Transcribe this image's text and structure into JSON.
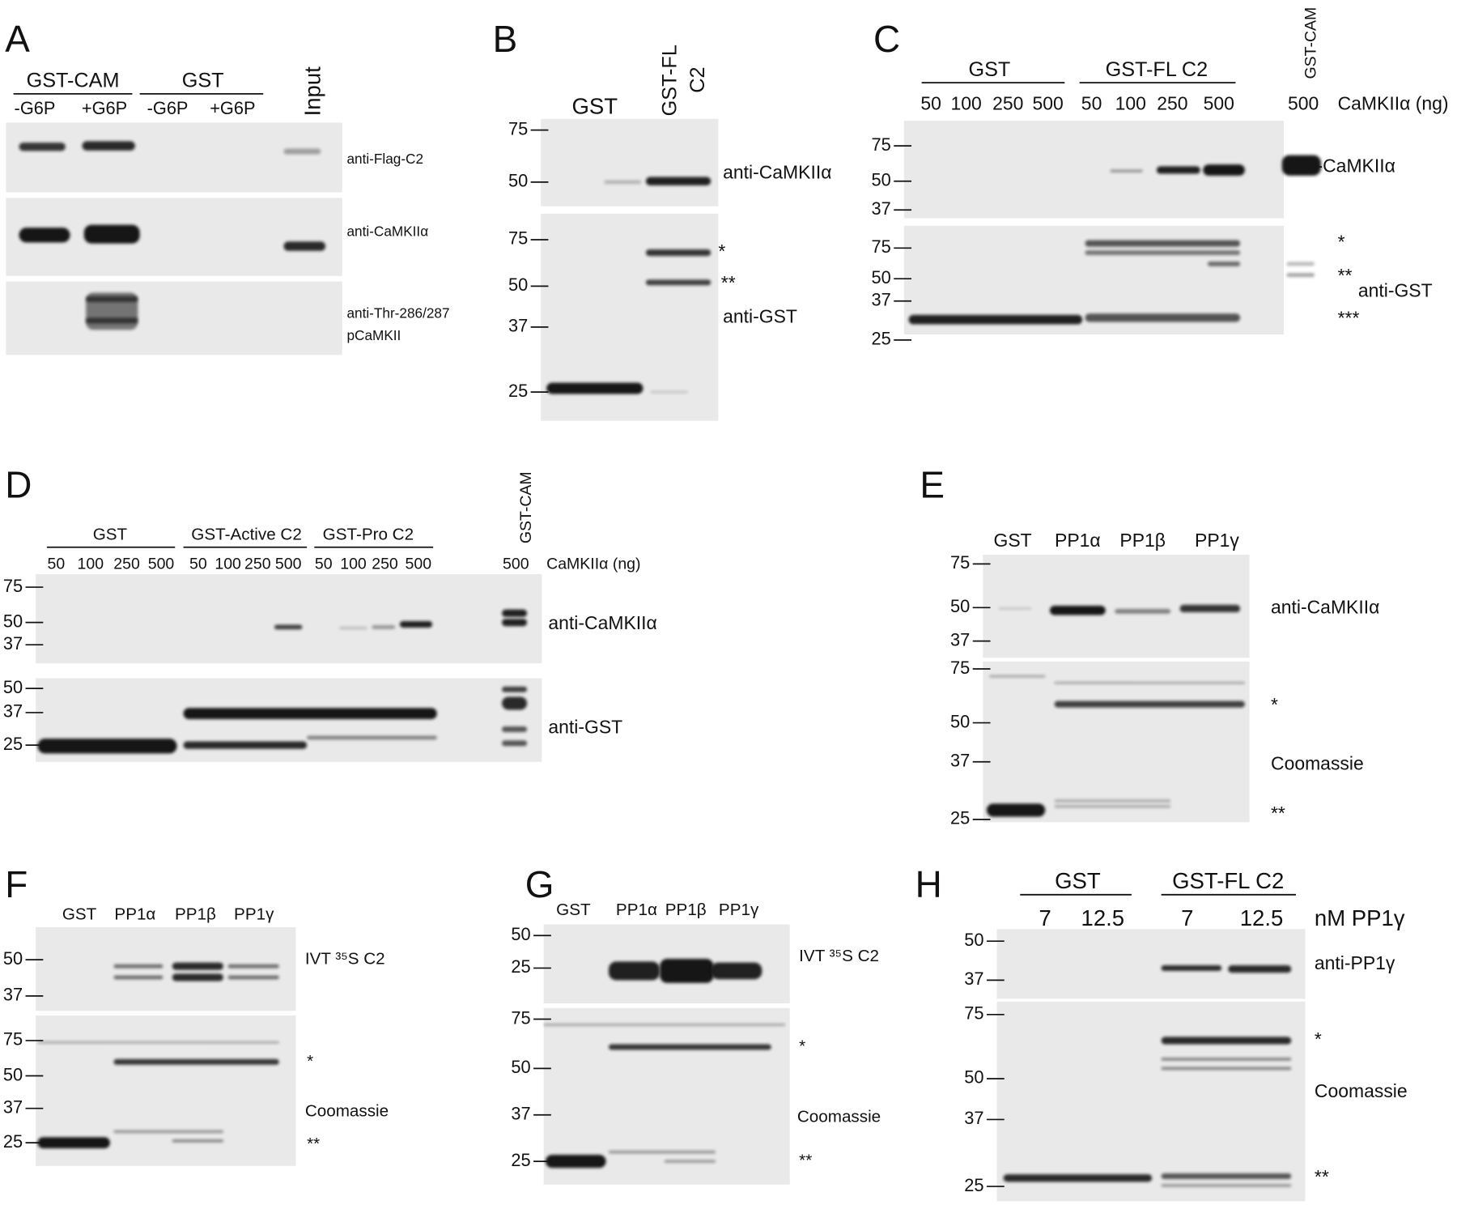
{
  "panels": [
    {
      "label": "A",
      "headers": [
        "GST-CAM",
        "GST"
      ],
      "vertical_labels": [
        "Input"
      ],
      "lanes": [
        "-G6P",
        "+G6P",
        "-G6P",
        "+G6P"
      ],
      "blots": [
        {
          "markers": [],
          "annotations": [
            "anti-Flag-C2"
          ]
        },
        {
          "markers": [],
          "annotations": [
            "anti-CaMKIIα"
          ]
        },
        {
          "markers": [],
          "annotations": [
            "anti-Thr-286/287",
            "pCaMKII"
          ]
        }
      ]
    },
    {
      "label": "B",
      "vertical_labels": [
        "GST-FL",
        "C2"
      ],
      "lanes": [
        "GST"
      ],
      "blots": [
        {
          "markers": [
            "75",
            "50"
          ],
          "annotations": [
            "anti-CaMKIIα"
          ]
        },
        {
          "markers": [
            "75",
            "50",
            "37",
            "25"
          ],
          "annotations": [
            "*",
            "**",
            "anti-GST"
          ]
        }
      ]
    },
    {
      "label": "C",
      "headers": [
        "GST",
        "GST-FL C2"
      ],
      "vertical_labels": [
        "GST-CAM"
      ],
      "lanes": [
        "50",
        "100",
        "250",
        "500",
        "50",
        "100",
        "250",
        "500",
        "500"
      ],
      "lane_unit": "CaMKIIα (ng)",
      "blots": [
        {
          "markers": [
            "75",
            "50",
            "37"
          ],
          "annotations": [
            "anti-CaMKIIα"
          ]
        },
        {
          "markers": [
            "75",
            "50",
            "37",
            "25"
          ],
          "annotations": [
            "*",
            "**",
            "anti-GST",
            "***"
          ]
        }
      ]
    },
    {
      "label": "D",
      "headers": [
        "GST",
        "GST-Active C2",
        "GST-Pro C2"
      ],
      "vertical_labels": [
        "GST-CAM"
      ],
      "lanes": [
        "50",
        "100",
        "250",
        "500",
        "50",
        "100",
        "250",
        "500",
        "50",
        "100",
        "250",
        "500",
        "500"
      ],
      "lane_unit": "CaMKIIα (ng)",
      "blots": [
        {
          "markers": [
            "75",
            "50",
            "37"
          ],
          "annotations": [
            "anti-CaMKIIα"
          ]
        },
        {
          "markers": [
            "50",
            "37",
            "25"
          ],
          "annotations": [
            "anti-GST"
          ]
        }
      ]
    },
    {
      "label": "E",
      "lanes": [
        "GST",
        "PP1α",
        "PP1β",
        "PP1γ"
      ],
      "blots": [
        {
          "markers": [
            "75",
            "50",
            "37"
          ],
          "annotations": [
            "anti-CaMKIIα"
          ]
        },
        {
          "markers": [
            "75",
            "50",
            "37",
            "25"
          ],
          "annotations": [
            "*",
            "Coomassie",
            "**"
          ]
        }
      ]
    },
    {
      "label": "F",
      "lanes": [
        "GST",
        "PP1α",
        "PP1β",
        "PP1γ"
      ],
      "blots": [
        {
          "markers": [
            "50",
            "37"
          ],
          "annotations": [
            "IVT ³⁵S C2"
          ]
        },
        {
          "markers": [
            "75",
            "50",
            "37",
            "25"
          ],
          "annotations": [
            "*",
            "Coomassie",
            "**"
          ]
        }
      ]
    },
    {
      "label": "G",
      "lanes": [
        "GST",
        "PP1α",
        "PP1β",
        "PP1γ"
      ],
      "blots": [
        {
          "markers": [
            "50",
            "25"
          ],
          "annotations": [
            "IVT ³⁵S C2"
          ]
        },
        {
          "markers": [
            "75",
            "50",
            "37",
            "25"
          ],
          "annotations": [
            "*",
            "Coomassie",
            "**"
          ]
        }
      ]
    },
    {
      "label": "H",
      "headers": [
        "GST",
        "GST-FL C2"
      ],
      "lanes": [
        "7",
        "12.5",
        "7",
        "12.5"
      ],
      "lane_unit": "nM PP1γ",
      "blots": [
        {
          "markers": [
            "50",
            "37"
          ],
          "annotations": [
            "anti-PP1γ"
          ]
        },
        {
          "markers": [
            "75",
            "50",
            "37",
            "25"
          ],
          "annotations": [
            "*",
            "Coomassie",
            "**"
          ]
        }
      ]
    }
  ]
}
